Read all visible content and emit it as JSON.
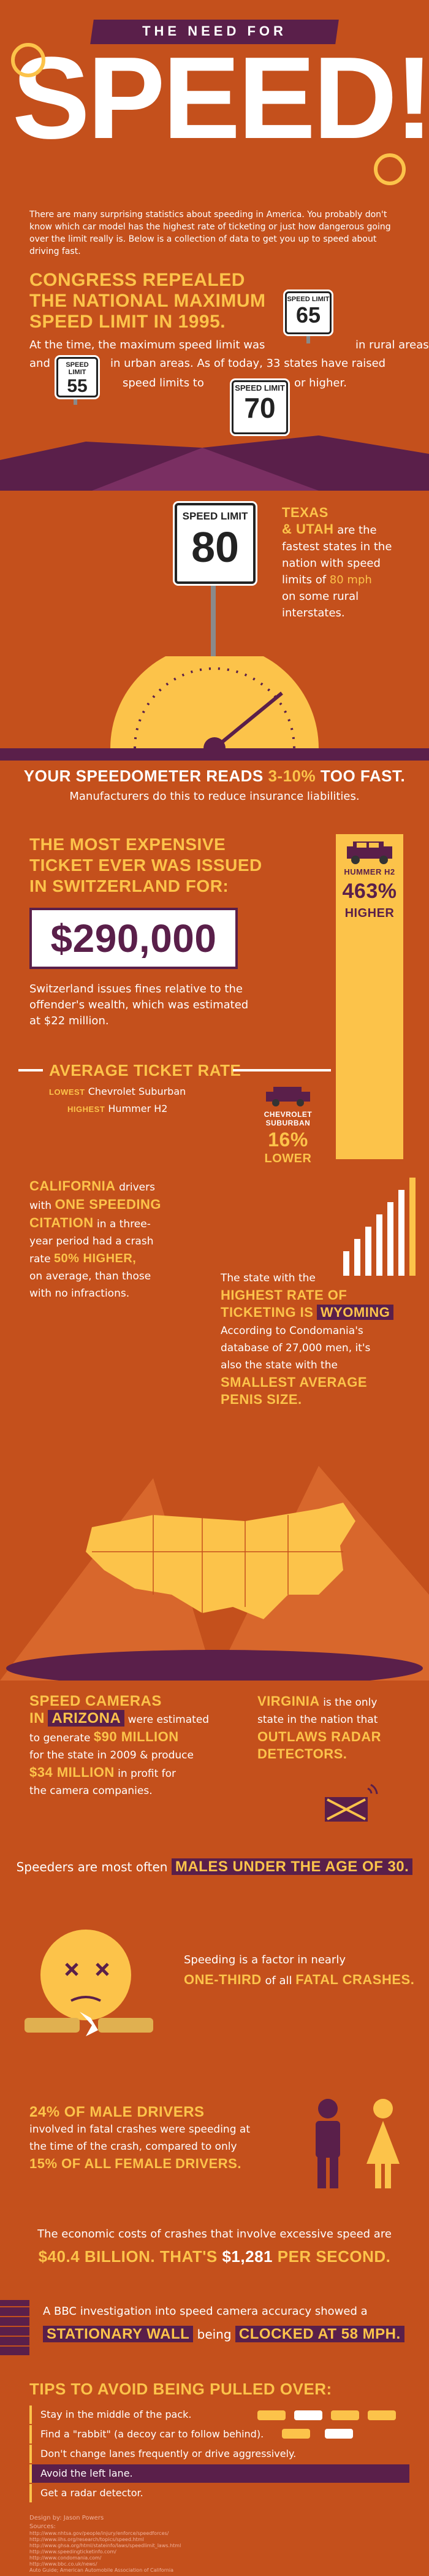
{
  "header": {
    "kicker": "THE NEED FOR",
    "title": "SPEED!",
    "intro": "There are many surprising statistics about speeding in America. You probably don't know which car model has the highest rate of ticketing or just how dangerous going over the limit really is. Below is a collection of data to get you up to speed about driving fast."
  },
  "congress": {
    "title_line1": "CONGRESS REPEALED",
    "title_line2": "THE NATIONAL MAXIMUM",
    "title_line3": "SPEED LIMIT IN 1995.",
    "text_a": "At the time, the maximum speed limit was",
    "text_b": "in rural areas",
    "text_c": "and",
    "text_d": "in urban areas. As of today, 33 states have raised",
    "text_e": "speed limits to",
    "text_f": "or higher.",
    "sign_label": "SPEED LIMIT",
    "sign_65": "65",
    "sign_55": "55",
    "sign_70": "70"
  },
  "texas": {
    "sign_label": "SPEED LIMIT",
    "sign_80": "80",
    "line1": "TEXAS",
    "line2a": "& UTAH",
    "line2b": "are the",
    "line3": "fastest states in the",
    "line4": "nation with speed",
    "line5a": "limits of",
    "line5b": "80 mph",
    "line6": "on some rural",
    "line7": "interstates."
  },
  "speedo": {
    "line_a": "YOUR SPEEDOMETER READS",
    "line_b": "3-10%",
    "line_c": "TOO FAST.",
    "sub": "Manufacturers do this to reduce insurance liabilities."
  },
  "ticket": {
    "line1": "THE MOST EXPENSIVE",
    "line2": "TICKET EVER WAS ISSUED",
    "line3": "IN SWITZERLAND FOR:",
    "amount": "$290,000",
    "desc": "Switzerland issues fines relative to the offender's wealth, which was estimated at $22 million.",
    "hummer_label": "HUMMER H2",
    "hummer_pct": "463%",
    "hummer_word": "HIGHER",
    "avg_title": "AVERAGE TICKET RATE",
    "lowest_key": "LOWEST",
    "lowest_val": "Chevrolet Suburban",
    "highest_key": "HIGHEST",
    "highest_val": "Hummer H2",
    "chevy_label1": "CHEVROLET",
    "chevy_label2": "SUBURBAN",
    "chevy_pct": "16%",
    "chevy_word": "LOWER"
  },
  "california": {
    "l1a": "CALIFORNIA",
    "l1b": "drivers",
    "l2a": "with",
    "l2b": "ONE SPEEDING",
    "l3a": "CITATION",
    "l3b": "in a three-",
    "l4": "year period had a crash",
    "l5a": "rate",
    "l5b": "50% HIGHER,",
    "l6": "on average, than those",
    "l7": "with no infractions."
  },
  "wyoming": {
    "l1": "The state with the",
    "l2": "HIGHEST RATE OF",
    "l3a": "TICKETING IS",
    "l3b": "WYOMING",
    "l4": "According to Condomania's",
    "l5": "database of 27,000 men, it's",
    "l6": "also the state with the",
    "l7": "SMALLEST AVERAGE",
    "l8": "PENIS SIZE."
  },
  "arizona": {
    "l1": "SPEED CAMERAS",
    "l2a": "IN",
    "l2b": "ARIZONA",
    "l2c": "were estimated",
    "l3a": "to generate",
    "l3b": "$90 MILLION",
    "l4": "for the state in 2009 & produce",
    "l5a": "$34 MILLION",
    "l5b": "in profit for",
    "l6": "the camera companies."
  },
  "virginia": {
    "l1a": "VIRGINIA",
    "l1b": "is the only",
    "l2": "state in the nation that",
    "l3": "OUTLAWS RADAR",
    "l4": "DETECTORS."
  },
  "males": {
    "text_a": "Speeders are most often",
    "text_b": "MALES UNDER THE AGE OF 30."
  },
  "fatal": {
    "l1": "Speeding is a factor in nearly",
    "l2a": "ONE-THIRD",
    "l2b": "of all",
    "l2c": "FATAL CRASHES."
  },
  "gender": {
    "l1": "24% OF MALE DRIVERS",
    "l2": "involved in fatal crashes were speeding at",
    "l3": "the time of the crash, compared to only",
    "l4a": "15% OF ALL",
    "l4b": "FEMALE",
    "l4c": "DRIVERS."
  },
  "cost": {
    "l1": "The economic costs of crashes that involve excessive speed are",
    "l2a": "$40.4 BILLION. THAT'S",
    "l2b": "$1,281",
    "l2c": "PER SECOND."
  },
  "bbc": {
    "l1": "A BBC investigation into speed camera accuracy showed a",
    "l2a": "STATIONARY WALL",
    "l2b": "being",
    "l2c": "CLOCKED AT 58 MPH."
  },
  "tips": {
    "title": "TIPS TO AVOID BEING PULLED OVER:",
    "items": [
      "Stay in the middle of the pack.",
      "Find a \"rabbit\" (a decoy car to follow behind).",
      "Don't change lanes frequently or drive aggressively.",
      "Avoid the left lane.",
      "Get a radar detector."
    ]
  },
  "footer": {
    "design": "Design by: Jason Powers",
    "sources_label": "Sources:",
    "sources": [
      "http://www.nhtsa.gov/people/injury/enforce/speedforces/",
      "http://www.iihs.org/research/topics/speed.html",
      "http://www.ghsa.org/html/stateinfo/laws/speedlimit_laws.html",
      "http://www.speedingticketinfo.com/",
      "http://www.condomania.com/",
      "http://www.bbc.co.uk/news/",
      "Auto Guide; American Automobile Association of California"
    ]
  },
  "colors": {
    "background": "#c4501c",
    "accent": "#fcc34a",
    "dark": "#5a1f4a"
  }
}
